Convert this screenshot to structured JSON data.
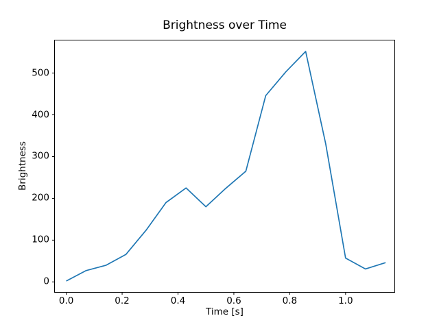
{
  "figure": {
    "background_color": "#ffffff",
    "text_color": "#000000"
  },
  "chart_data": {
    "type": "line",
    "title": "Brightness over Time",
    "xlabel": "Time [s]",
    "ylabel": "Brightness",
    "x": [
      0.0,
      0.071,
      0.143,
      0.214,
      0.286,
      0.357,
      0.429,
      0.5,
      0.571,
      0.643,
      0.714,
      0.786,
      0.857,
      0.929,
      1.0,
      1.071,
      1.143
    ],
    "y": [
      2,
      27,
      40,
      66,
      124,
      190,
      225,
      180,
      224,
      265,
      446,
      503,
      552,
      330,
      57,
      31,
      46
    ],
    "series_name": "Brightness",
    "line_color": "#1f77b4",
    "line_width": 1.7,
    "xticks": {
      "values": [
        0.0,
        0.2,
        0.4,
        0.6,
        0.8,
        1.0
      ],
      "labels": [
        "0.0",
        "0.2",
        "0.4",
        "0.6",
        "0.8",
        "1.0"
      ]
    },
    "yticks": {
      "values": [
        0,
        100,
        200,
        300,
        400,
        500
      ],
      "labels": [
        "0",
        "100",
        "200",
        "300",
        "400",
        "500"
      ]
    },
    "xlim": [
      -0.042,
      1.176
    ],
    "ylim": [
      -25,
      579
    ],
    "grid": false,
    "legend": null,
    "spine_color": "#000000"
  }
}
